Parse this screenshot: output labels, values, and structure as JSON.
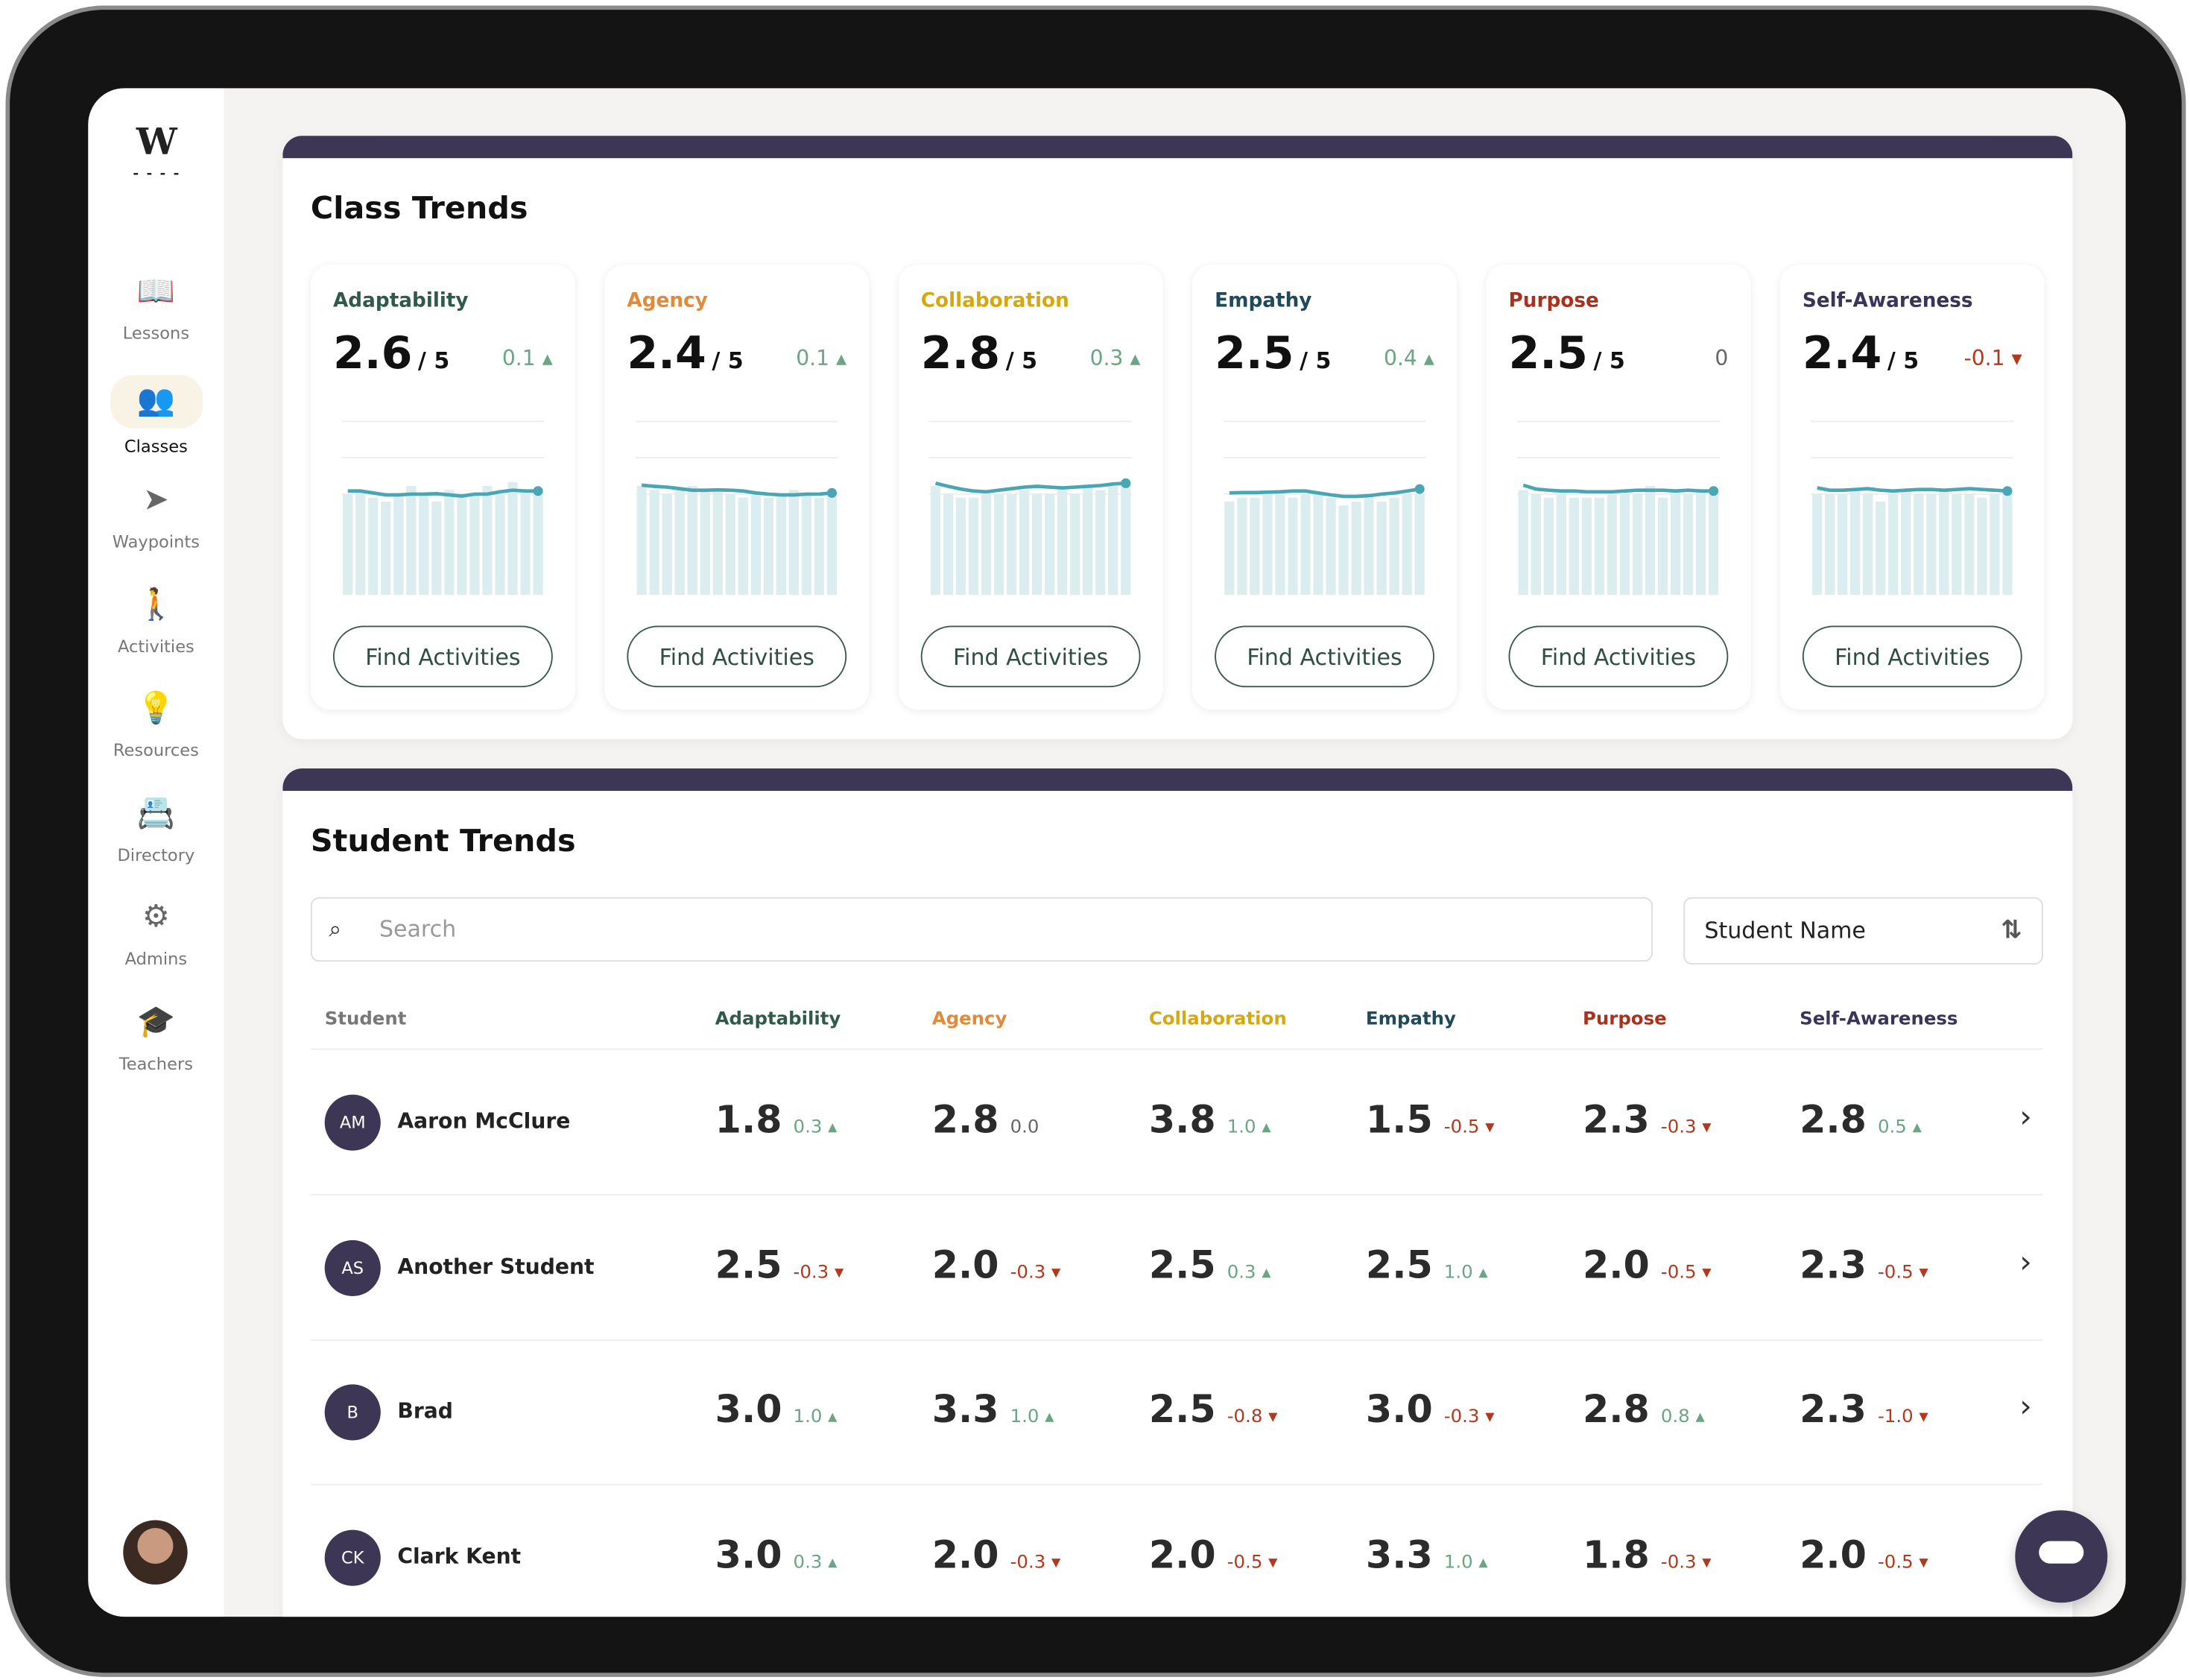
{
  "sidebar": {
    "logo": "W",
    "items": [
      {
        "label": "Lessons",
        "icon": "book-icon",
        "glyph": "📖"
      },
      {
        "label": "Classes",
        "icon": "users-icon",
        "glyph": "👥",
        "active": true
      },
      {
        "label": "Waypoints",
        "icon": "navigation-arrow-icon",
        "glyph": "➤"
      },
      {
        "label": "Activities",
        "icon": "hiker-icon",
        "glyph": "🚶"
      },
      {
        "label": "Resources",
        "icon": "lightbulb-icon",
        "glyph": "💡"
      },
      {
        "label": "Directory",
        "icon": "contact-book-icon",
        "glyph": "📇"
      },
      {
        "label": "Admins",
        "icon": "user-gear-icon",
        "glyph": "⚙"
      },
      {
        "label": "Teachers",
        "icon": "teacher-icon",
        "glyph": "🎓"
      }
    ]
  },
  "class_trends": {
    "title": "Class Trends",
    "button": "Find Activities",
    "cards": [
      {
        "name": "Adaptability",
        "color": "#2f5a4a",
        "score": "2.6",
        "max": "/ 5",
        "delta": "0.1",
        "dir": "up"
      },
      {
        "name": "Agency",
        "color": "#e08a3c",
        "score": "2.4",
        "max": "/ 5",
        "delta": "0.1",
        "dir": "up"
      },
      {
        "name": "Collaboration",
        "color": "#d4a90f",
        "score": "2.8",
        "max": "/ 5",
        "delta": "0.3",
        "dir": "up"
      },
      {
        "name": "Empathy",
        "color": "#1f4a5c",
        "score": "2.5",
        "max": "/ 5",
        "delta": "0.4",
        "dir": "up"
      },
      {
        "name": "Purpose",
        "color": "#a8321e",
        "score": "2.5",
        "max": "/ 5",
        "delta": "0",
        "dir": "none"
      },
      {
        "name": "Self-Awareness",
        "color": "#3a3458",
        "score": "2.4",
        "max": "/ 5",
        "delta": "-0.1",
        "dir": "down"
      }
    ]
  },
  "chart_data": [
    {
      "type": "bar",
      "title": "Adaptability",
      "values": [
        2.6,
        2.7,
        2.5,
        2.4,
        2.6,
        2.8,
        2.6,
        2.4,
        2.7,
        2.6,
        2.6,
        2.8,
        2.6,
        2.9,
        2.7,
        2.7
      ],
      "line": [
        2.6,
        2.6,
        2.55,
        2.5,
        2.5,
        2.52,
        2.52,
        2.53,
        2.5,
        2.47,
        2.52,
        2.52,
        2.58,
        2.62,
        2.6,
        2.6
      ],
      "ylim": [
        0,
        5
      ]
    },
    {
      "type": "bar",
      "title": "Agency",
      "values": [
        2.8,
        2.7,
        2.6,
        2.7,
        2.8,
        2.7,
        2.7,
        2.6,
        2.5,
        2.6,
        2.5,
        2.6,
        2.7,
        2.6,
        2.5,
        2.6
      ],
      "line": [
        2.75,
        2.72,
        2.7,
        2.66,
        2.62,
        2.62,
        2.63,
        2.62,
        2.6,
        2.55,
        2.52,
        2.5,
        2.5,
        2.52,
        2.52,
        2.55
      ],
      "ylim": [
        0,
        5
      ]
    },
    {
      "type": "bar",
      "title": "Collaboration",
      "values": [
        2.8,
        2.6,
        2.5,
        2.5,
        2.7,
        2.6,
        2.6,
        2.7,
        2.6,
        2.6,
        2.7,
        2.6,
        2.8,
        2.7,
        2.8,
        2.8
      ],
      "line": [
        2.8,
        2.72,
        2.65,
        2.6,
        2.58,
        2.62,
        2.66,
        2.7,
        2.72,
        2.7,
        2.68,
        2.7,
        2.72,
        2.74,
        2.78,
        2.8
      ],
      "ylim": [
        0,
        5
      ]
    },
    {
      "type": "bar",
      "title": "Empathy",
      "values": [
        2.4,
        2.5,
        2.5,
        2.6,
        2.7,
        2.5,
        2.6,
        2.6,
        2.5,
        2.3,
        2.4,
        2.5,
        2.4,
        2.5,
        2.6,
        2.6
      ],
      "line": [
        2.55,
        2.56,
        2.56,
        2.57,
        2.58,
        2.6,
        2.6,
        2.55,
        2.5,
        2.46,
        2.46,
        2.48,
        2.52,
        2.55,
        2.6,
        2.65
      ],
      "ylim": [
        0,
        5
      ]
    },
    {
      "type": "bar",
      "title": "Purpose",
      "values": [
        2.7,
        2.6,
        2.5,
        2.6,
        2.5,
        2.5,
        2.5,
        2.6,
        2.6,
        2.6,
        2.8,
        2.5,
        2.7,
        2.6,
        2.7,
        2.6
      ],
      "line": [
        2.75,
        2.65,
        2.62,
        2.6,
        2.6,
        2.58,
        2.58,
        2.58,
        2.6,
        2.62,
        2.62,
        2.62,
        2.6,
        2.62,
        2.6,
        2.6
      ],
      "ylim": [
        0,
        5
      ]
    },
    {
      "type": "bar",
      "title": "Self-Awareness",
      "values": [
        2.6,
        2.6,
        2.6,
        2.7,
        2.6,
        2.4,
        2.6,
        2.7,
        2.6,
        2.6,
        2.7,
        2.6,
        2.6,
        2.5,
        2.6,
        2.6
      ],
      "line": [
        2.68,
        2.62,
        2.62,
        2.64,
        2.66,
        2.62,
        2.6,
        2.62,
        2.64,
        2.64,
        2.62,
        2.64,
        2.66,
        2.64,
        2.62,
        2.6
      ],
      "ylim": [
        0,
        5
      ]
    }
  ],
  "student_trends": {
    "title": "Student Trends",
    "search": {
      "placeholder": "Search",
      "value": ""
    },
    "sort": {
      "label": "Student Name"
    },
    "columns": [
      {
        "label": "Student",
        "color": "#777777"
      },
      {
        "label": "Adaptability",
        "color": "#2f5a4a"
      },
      {
        "label": "Agency",
        "color": "#e08a3c"
      },
      {
        "label": "Collaboration",
        "color": "#d4a90f"
      },
      {
        "label": "Empathy",
        "color": "#1f4a5c"
      },
      {
        "label": "Purpose",
        "color": "#a8321e"
      },
      {
        "label": "Self-Awareness",
        "color": "#3a3458"
      }
    ],
    "rows": [
      {
        "initials": "AM",
        "name": "Aaron McClure",
        "cells": [
          [
            "1.8",
            "0.3",
            "up"
          ],
          [
            "2.8",
            "0.0",
            "none"
          ],
          [
            "3.8",
            "1.0",
            "up"
          ],
          [
            "1.5",
            "-0.5",
            "down"
          ],
          [
            "2.3",
            "-0.3",
            "down"
          ],
          [
            "2.8",
            "0.5",
            "up"
          ]
        ]
      },
      {
        "initials": "AS",
        "name": "Another Student",
        "cells": [
          [
            "2.5",
            "-0.3",
            "down"
          ],
          [
            "2.0",
            "-0.3",
            "down"
          ],
          [
            "2.5",
            "0.3",
            "up"
          ],
          [
            "2.5",
            "1.0",
            "up"
          ],
          [
            "2.0",
            "-0.5",
            "down"
          ],
          [
            "2.3",
            "-0.5",
            "down"
          ]
        ]
      },
      {
        "initials": "B",
        "name": "Brad",
        "cells": [
          [
            "3.0",
            "1.0",
            "up"
          ],
          [
            "3.3",
            "1.0",
            "up"
          ],
          [
            "2.5",
            "-0.8",
            "down"
          ],
          [
            "3.0",
            "-0.3",
            "down"
          ],
          [
            "2.8",
            "0.8",
            "up"
          ],
          [
            "2.3",
            "-1.0",
            "down"
          ]
        ]
      },
      {
        "initials": "CK",
        "name": "Clark Kent",
        "cells": [
          [
            "3.0",
            "0.3",
            "up"
          ],
          [
            "2.0",
            "-0.3",
            "down"
          ],
          [
            "2.0",
            "-0.5",
            "down"
          ],
          [
            "3.3",
            "1.0",
            "up"
          ],
          [
            "1.8",
            "-0.3",
            "down"
          ],
          [
            "2.0",
            "-0.5",
            "down"
          ]
        ]
      }
    ]
  },
  "colors": {
    "header_bar": "#3d3755",
    "positive": "#6aa584",
    "negative": "#b3391e",
    "spark_bar": "#dcedef",
    "spark_line": "#4aa6b5"
  }
}
